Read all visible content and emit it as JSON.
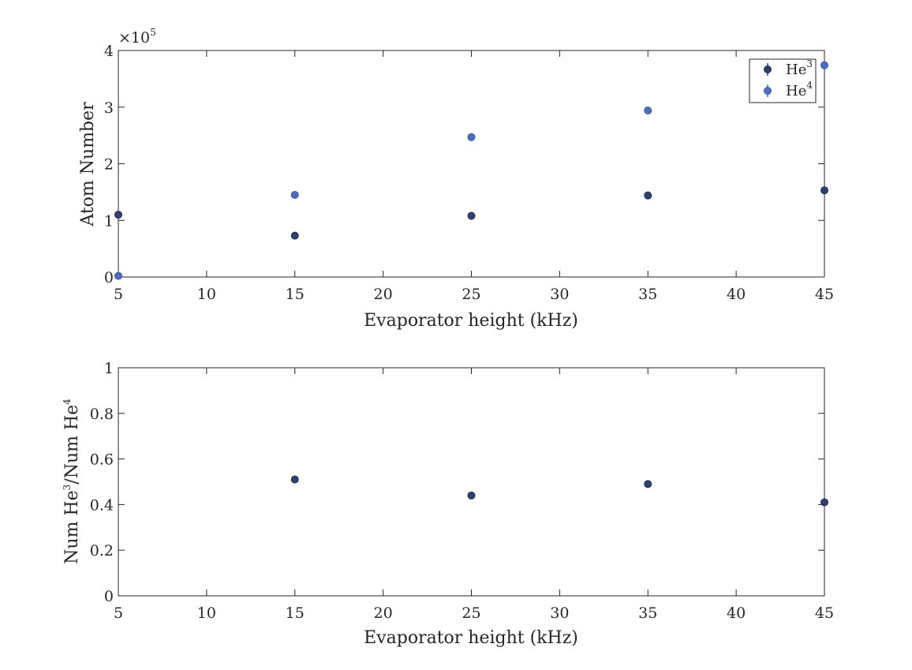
{
  "chart_data": [
    {
      "type": "scatter",
      "title": "",
      "xlabel": "Evaporator height (kHz)",
      "ylabel": "Atom Number",
      "xlim": [
        5,
        45
      ],
      "ylim": [
        0,
        400000
      ],
      "xticks": [
        5,
        10,
        15,
        20,
        25,
        30,
        35,
        40,
        45
      ],
      "xtick_labels": [
        "5",
        "10",
        "15",
        "20",
        "25",
        "30",
        "35",
        "40",
        "45"
      ],
      "yticks": [
        0,
        100000,
        200000,
        300000,
        400000
      ],
      "ytick_labels": [
        "0",
        "1",
        "2",
        "3",
        "4"
      ],
      "exponent_label": {
        "base": "×10",
        "power": "5"
      },
      "grid": false,
      "legend_position": "top-right",
      "series": [
        {
          "name": {
            "base": "He",
            "power": "3"
          },
          "color": "#2c4372",
          "x": [
            5,
            15,
            25,
            35,
            45
          ],
          "y": [
            110000,
            73000,
            108000,
            144000,
            153000
          ]
        },
        {
          "name": {
            "base": "He",
            "power": "4"
          },
          "color": "#4a6fc2",
          "x": [
            5,
            15,
            25,
            35,
            45
          ],
          "y": [
            2000,
            145000,
            247000,
            294000,
            374000
          ]
        }
      ]
    },
    {
      "type": "scatter",
      "title": "",
      "xlabel": "Evaporator height (kHz)",
      "ylabel": {
        "p1": "Num He",
        "s1": "3",
        "p2": "/Num He",
        "s2": "4"
      },
      "xlim": [
        5,
        45
      ],
      "ylim": [
        0,
        1
      ],
      "xticks": [
        5,
        10,
        15,
        20,
        25,
        30,
        35,
        40,
        45
      ],
      "xtick_labels": [
        "5",
        "10",
        "15",
        "20",
        "25",
        "30",
        "35",
        "40",
        "45"
      ],
      "yticks": [
        0,
        0.2,
        0.4,
        0.6,
        0.8,
        1
      ],
      "ytick_labels": [
        "0",
        "0.2",
        "0.4",
        "0.6",
        "0.8",
        "1"
      ],
      "grid": false,
      "series": [
        {
          "color": "#2c4372",
          "x": [
            15,
            25,
            35,
            45
          ],
          "y": [
            0.51,
            0.44,
            0.49,
            0.41
          ]
        }
      ]
    }
  ]
}
